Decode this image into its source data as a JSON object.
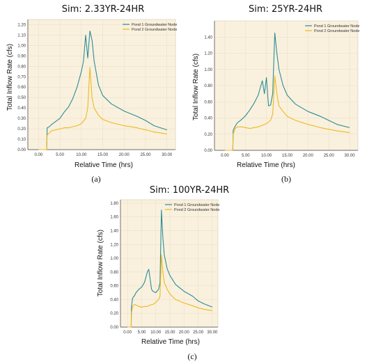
{
  "colors": {
    "pond1": "#2c8c96",
    "pond2": "#f0b81c",
    "plot_bg": "#f9f1de",
    "grid": "#eadcc2"
  },
  "chart_data": [
    {
      "type": "line",
      "title": "Sim: 2.33YR-24HR",
      "xlabel": "Relative Time (hrs)",
      "ylabel": "Total Inflow Rate (cfs)",
      "caption": "(a)",
      "xlim": [
        -2.5,
        32
      ],
      "ylim": [
        0,
        1.25
      ],
      "xticks": [
        "0.00",
        "5.00",
        "10.00",
        "15.00",
        "20.00",
        "25.00",
        "30.00"
      ],
      "yticks": [
        "0.00",
        "0.10",
        "0.20",
        "0.30",
        "0.40",
        "0.50",
        "0.60",
        "0.70",
        "0.80",
        "0.90",
        "1.00",
        "1.10",
        "1.20"
      ],
      "grid": true,
      "legend_position": "top-right",
      "series": [
        {
          "name": "Pond 1 Groundwater Node",
          "x": [
            0,
            1.9,
            2.0,
            2.5,
            3,
            4,
            5,
            6,
            7,
            8,
            9,
            10,
            10.5,
            11,
            11.5,
            12,
            12.5,
            13,
            14,
            15,
            17,
            20,
            23,
            25,
            27,
            30
          ],
          "y": [
            0,
            0,
            0.21,
            0.22,
            0.24,
            0.27,
            0.3,
            0.36,
            0.41,
            0.49,
            0.6,
            0.75,
            0.85,
            1.1,
            0.88,
            1.14,
            1.05,
            0.85,
            0.62,
            0.52,
            0.44,
            0.37,
            0.32,
            0.28,
            0.23,
            0.19
          ]
        },
        {
          "name": "Pond 2 Groundwater Node",
          "x": [
            0,
            1.9,
            2.0,
            2.5,
            3,
            4,
            5,
            6,
            7,
            8,
            9,
            10,
            11,
            11.5,
            12,
            12.5,
            13,
            14,
            15,
            17,
            20,
            23,
            25,
            27,
            30
          ],
          "y": [
            0,
            0,
            0.14,
            0.16,
            0.18,
            0.19,
            0.2,
            0.21,
            0.21,
            0.22,
            0.23,
            0.25,
            0.3,
            0.4,
            0.79,
            0.5,
            0.4,
            0.33,
            0.29,
            0.26,
            0.23,
            0.21,
            0.19,
            0.17,
            0.15
          ]
        }
      ]
    },
    {
      "type": "line",
      "title": "Sim: 25YR-24HR",
      "xlabel": "Relative Time (hrs)",
      "ylabel": "Total Inflow Rate (cfs)",
      "caption": "(b)",
      "xlim": [
        -2.5,
        32
      ],
      "ylim": [
        0,
        1.6
      ],
      "xticks": [
        "0.00",
        "5.00",
        "10.00",
        "15.00",
        "20.00",
        "25.00",
        "30.00"
      ],
      "yticks": [
        "0.00",
        "0.20",
        "0.40",
        "0.60",
        "0.80",
        "1.00",
        "1.20",
        "1.40"
      ],
      "grid": true,
      "legend_position": "top-right",
      "series": [
        {
          "name": "Pond 1 Groundwater Node",
          "x": [
            0,
            1.9,
            2.0,
            2.5,
            3,
            4,
            5,
            6,
            7,
            8,
            9,
            9.5,
            10,
            10.5,
            11,
            11.5,
            12,
            12.5,
            13,
            14,
            15,
            17,
            20,
            23,
            25,
            27,
            30
          ],
          "y": [
            0,
            0,
            0.25,
            0.3,
            0.34,
            0.38,
            0.43,
            0.5,
            0.58,
            0.68,
            0.86,
            0.7,
            0.9,
            0.55,
            0.56,
            0.7,
            1.45,
            1.2,
            1.0,
            0.8,
            0.68,
            0.57,
            0.48,
            0.42,
            0.37,
            0.32,
            0.28
          ]
        },
        {
          "name": "Pond 2 Groundwater Node",
          "x": [
            0,
            1.9,
            2.0,
            2.5,
            3,
            4,
            5,
            6,
            7,
            8,
            9,
            10,
            11,
            11.5,
            12,
            12.5,
            13,
            14,
            15,
            17,
            20,
            23,
            25,
            27,
            30
          ],
          "y": [
            0,
            0,
            0.2,
            0.27,
            0.29,
            0.29,
            0.28,
            0.27,
            0.28,
            0.29,
            0.31,
            0.33,
            0.37,
            0.45,
            0.92,
            0.7,
            0.55,
            0.48,
            0.42,
            0.37,
            0.32,
            0.28,
            0.26,
            0.24,
            0.22
          ]
        }
      ]
    },
    {
      "type": "line",
      "title": "Sim: 100YR-24HR",
      "xlabel": "Relative Time (hrs)",
      "ylabel": "Total Inflow Rate (cfs)",
      "caption": "(c)",
      "xlim": [
        -2.5,
        32
      ],
      "ylim": [
        0,
        1.85
      ],
      "xticks": [
        "0.00",
        "5.00",
        "10.00",
        "15.00",
        "20.00",
        "25.00",
        "30.00"
      ],
      "yticks": [
        "0.00",
        "0.20",
        "0.40",
        "0.60",
        "0.80",
        "1.00",
        "1.20",
        "1.40",
        "1.60",
        "1.80"
      ],
      "grid": true,
      "legend_position": "top-right",
      "series": [
        {
          "name": "Pond 1 Groundwater Node",
          "x": [
            0,
            1.3,
            1.4,
            1.8,
            2.5,
            3,
            4,
            5,
            6,
            7,
            7.5,
            8,
            8.5,
            9,
            10,
            11,
            11.5,
            12,
            12.5,
            13,
            14,
            15,
            17,
            20,
            23,
            25,
            27,
            30
          ],
          "y": [
            0,
            0,
            0.3,
            0.42,
            0.46,
            0.5,
            0.55,
            0.58,
            0.65,
            0.8,
            0.84,
            0.7,
            0.55,
            0.52,
            0.5,
            0.55,
            0.65,
            1.7,
            1.3,
            1.05,
            0.85,
            0.75,
            0.62,
            0.52,
            0.45,
            0.38,
            0.34,
            0.29
          ]
        },
        {
          "name": "Pond 2 Groundwater Node",
          "x": [
            0,
            1.3,
            1.4,
            1.8,
            2.5,
            3,
            4,
            5,
            6,
            7,
            8,
            9,
            10,
            11,
            11.5,
            12,
            12.5,
            13,
            14,
            15,
            17,
            20,
            23,
            25,
            27,
            30
          ],
          "y": [
            0,
            0,
            0.2,
            0.3,
            0.33,
            0.32,
            0.3,
            0.29,
            0.3,
            0.3,
            0.32,
            0.33,
            0.36,
            0.4,
            0.45,
            1.05,
            0.8,
            0.65,
            0.55,
            0.48,
            0.4,
            0.35,
            0.31,
            0.28,
            0.26,
            0.24
          ]
        }
      ]
    }
  ]
}
